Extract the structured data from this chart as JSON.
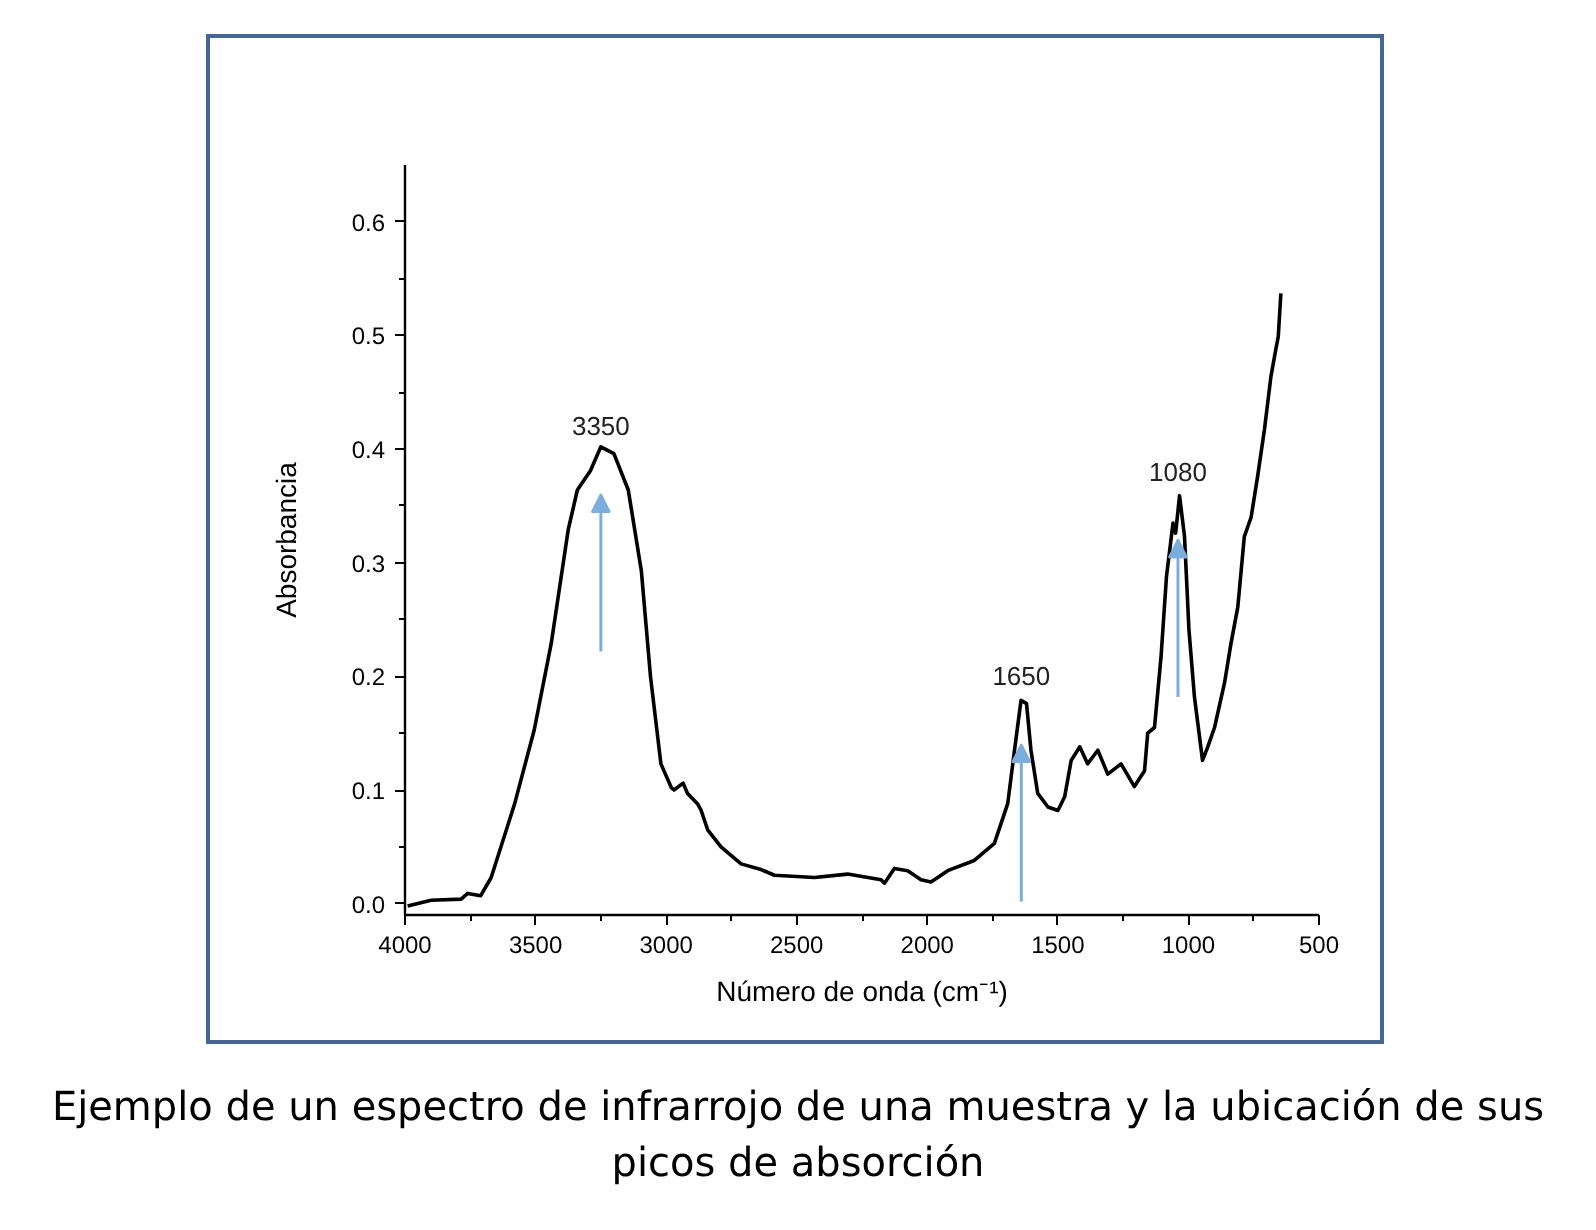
{
  "chart_data": {
    "type": "line",
    "xlabel": "Número de onda (cm⁻¹)",
    "ylabel": "Absorbancia",
    "color": "#000000",
    "xlim": [
      4000,
      500
    ],
    "ylim": [
      -0.01,
      0.65
    ],
    "xticks": [
      4000,
      {
        "value": 3750,
        "label": null
      },
      3500,
      {
        "value": 3250,
        "label": null
      },
      3000,
      {
        "value": 2750,
        "label": null
      },
      2500,
      {
        "value": 2250,
        "label": null
      },
      2000,
      {
        "value": 1750,
        "label": null
      },
      1500,
      {
        "value": 1250,
        "label": null
      },
      1000,
      {
        "value": 750,
        "label": null
      },
      500
    ],
    "yticks": [
      {
        "value": 0,
        "label": "0.0"
      },
      {
        "value": 0.05,
        "label": null
      },
      0.1,
      {
        "value": 0.15,
        "label": null
      },
      0.2,
      {
        "value": 0.25,
        "label": null
      },
      0.3,
      {
        "value": 0.35,
        "label": null
      },
      0.4,
      {
        "value": 0.45,
        "label": null
      },
      0.5,
      {
        "value": 0.55,
        "label": null
      },
      0.6
    ],
    "x": [
      3990,
      3900,
      3785,
      3760,
      3710,
      3670,
      3645,
      3580,
      3505,
      3440,
      3375,
      3340,
      3290,
      3250,
      3200,
      3145,
      3095,
      3060,
      3020,
      2980,
      2970,
      2935,
      2918,
      2880,
      2866,
      2841,
      2790,
      2713,
      2637,
      2585,
      2432,
      2305,
      2177,
      2164,
      2126,
      2075,
      2024,
      1986,
      1960,
      1922,
      1820,
      1743,
      1692,
      1666,
      1641,
      1620,
      1603,
      1577,
      1538,
      1500,
      1474,
      1449,
      1416,
      1386,
      1347,
      1309,
      1258,
      1207,
      1168,
      1156,
      1130,
      1105,
      1084,
      1059,
      1049,
      1034,
      1015,
      998,
      977,
      946,
      926,
      900,
      862,
      837,
      811,
      786,
      760,
      735,
      709,
      684,
      666,
      656,
      646
    ],
    "values": [
      -0.002,
      0.003,
      0.004,
      0.009,
      0.007,
      0.023,
      0.041,
      0.088,
      0.153,
      0.229,
      0.329,
      0.364,
      0.381,
      0.402,
      0.396,
      0.364,
      0.293,
      0.2,
      0.123,
      0.102,
      0.1,
      0.106,
      0.097,
      0.088,
      0.082,
      0.065,
      0.05,
      0.035,
      0.03,
      0.025,
      0.023,
      0.026,
      0.021,
      0.018,
      0.031,
      0.029,
      0.021,
      0.019,
      0.023,
      0.029,
      0.038,
      0.053,
      0.088,
      0.135,
      0.179,
      0.176,
      0.135,
      0.097,
      0.085,
      0.082,
      0.094,
      0.126,
      0.138,
      0.123,
      0.135,
      0.114,
      0.123,
      0.103,
      0.117,
      0.15,
      0.155,
      0.217,
      0.288,
      0.335,
      0.326,
      0.359,
      0.323,
      0.241,
      0.182,
      0.126,
      0.138,
      0.155,
      0.194,
      0.229,
      0.261,
      0.323,
      0.34,
      0.376,
      0.417,
      0.464,
      0.487,
      0.499,
      0.537
    ],
    "annotations": [
      {
        "text": "3350",
        "x": 3250,
        "y": 0.4
      },
      {
        "text": "1650",
        "x": 1640,
        "y": 0.18
      },
      {
        "text": "1080",
        "x": 1040,
        "y": 0.36
      },
      "Ejemplo de un espectro de infrarrojo de una muestra y la ubicación de sus picos de absorción"
    ]
  }
}
